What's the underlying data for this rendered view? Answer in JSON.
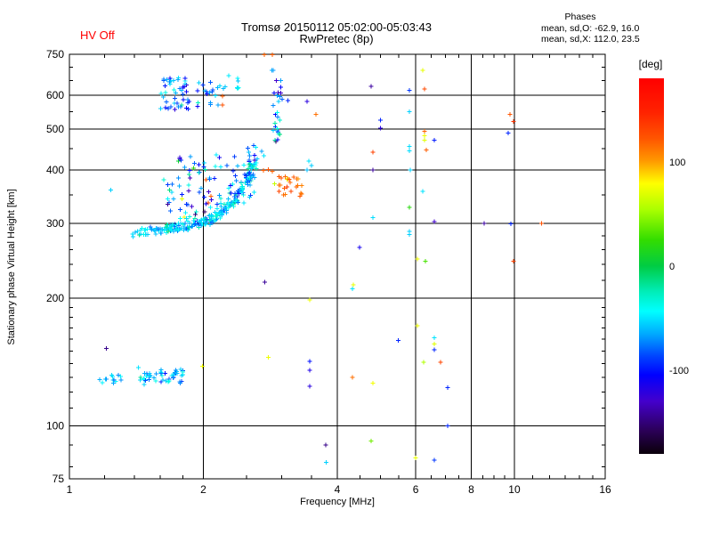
{
  "header": {
    "hv_status": "HV Off",
    "title": "Tromsø 20150112 05:02:00-05:03:43",
    "subtitle": "RwPretec (8p)",
    "phases_label": "Phases",
    "phases_o": "mean, sd,O: -62.9, 16.0",
    "phases_x": "mean, sd,X: 112.0, 23.5"
  },
  "colors": {
    "hv_status": "#ff0000",
    "grid": "#000000",
    "background": "#ffffff"
  },
  "chart_data": {
    "type": "scatter",
    "title": "Tromsø 20150112 05:02:00-05:03:43",
    "subtitle": "RwPretec (8p)",
    "xlabel": "Frequency [MHz]",
    "ylabel": "Stationary phase Virtual Height [km]",
    "x_scale": "log",
    "x_range": [
      1,
      16
    ],
    "y_scale": "log",
    "y_range": [
      75,
      750
    ],
    "x_major_ticks": [
      1,
      2,
      4,
      6,
      8,
      10,
      16
    ],
    "x_gridlines": [
      2,
      4,
      6,
      8,
      10
    ],
    "x_minor_ticks": [
      1.2,
      1.4,
      1.6,
      1.8,
      2.5,
      3,
      3.5,
      4.5,
      5,
      5.5,
      6.5,
      7,
      7.5,
      8.5,
      9,
      9.5,
      11,
      12,
      13,
      14,
      15
    ],
    "y_major_ticks": [
      750,
      600,
      500,
      400,
      300,
      200,
      100,
      75
    ],
    "y_gridlines": [
      600,
      500,
      400,
      300,
      200,
      100
    ],
    "y_minor_ticks": [
      700,
      650,
      550,
      450,
      350,
      280,
      260,
      240,
      220,
      190,
      180,
      170,
      160,
      150,
      140,
      130,
      120,
      110,
      90,
      80
    ],
    "grid": true,
    "colorbar": {
      "label": "[deg]",
      "range": [
        -180,
        180
      ],
      "tick_values": [
        100,
        0,
        -100
      ],
      "tick_labels": [
        "100",
        "0",
        "-100"
      ],
      "stops": [
        [
          0.0,
          "#ff0000"
        ],
        [
          0.09,
          "#ff2200"
        ],
        [
          0.16,
          "#ff5500"
        ],
        [
          0.22,
          "#ff9900"
        ],
        [
          0.28,
          "#ffff00"
        ],
        [
          0.35,
          "#aaff00"
        ],
        [
          0.43,
          "#33dd00"
        ],
        [
          0.5,
          "#00cc44"
        ],
        [
          0.57,
          "#00eebb"
        ],
        [
          0.62,
          "#00ffff"
        ],
        [
          0.68,
          "#00aaff"
        ],
        [
          0.74,
          "#0044ff"
        ],
        [
          0.79,
          "#0000ff"
        ],
        [
          0.86,
          "#4400cc"
        ],
        [
          0.94,
          "#2a0055"
        ],
        [
          1.0,
          "#0a000a"
        ]
      ]
    },
    "seed": 20150112,
    "points": [
      [
        4.77,
        630,
        -140
      ],
      [
        5.81,
        617,
        -90
      ],
      [
        6.22,
        687,
        72
      ],
      [
        6.28,
        622,
        128
      ],
      [
        5.81,
        550,
        -55
      ],
      [
        5.0,
        525,
        -95
      ],
      [
        5.0,
        503,
        -120
      ],
      [
        9.77,
        542,
        122
      ],
      [
        9.95,
        521,
        138
      ],
      [
        6.28,
        494,
        118
      ],
      [
        6.28,
        482,
        74
      ],
      [
        6.28,
        471,
        70
      ],
      [
        6.61,
        471,
        -98
      ],
      [
        9.68,
        489,
        -95
      ],
      [
        6.34,
        446,
        120
      ],
      [
        5.81,
        455,
        -52
      ],
      [
        5.81,
        444,
        -52
      ],
      [
        4.81,
        441,
        132
      ],
      [
        4.81,
        400,
        -142
      ],
      [
        5.83,
        400,
        -55
      ],
      [
        6.22,
        357,
        -50
      ],
      [
        5.81,
        327,
        20
      ],
      [
        4.81,
        309,
        -52
      ],
      [
        8.56,
        300,
        -140
      ],
      [
        9.81,
        299,
        -95
      ],
      [
        11.5,
        300,
        124
      ],
      [
        5.81,
        287,
        -55
      ],
      [
        5.81,
        282,
        -55
      ],
      [
        4.49,
        263,
        -112
      ],
      [
        6.05,
        247,
        74
      ],
      [
        6.31,
        244,
        30
      ],
      [
        9.95,
        244,
        132
      ],
      [
        6.61,
        303,
        -128
      ],
      [
        2.75,
        218,
        -142
      ],
      [
        3.47,
        198,
        74
      ],
      [
        2.8,
        145,
        74
      ],
      [
        1.99,
        138,
        76
      ],
      [
        3.47,
        142,
        -100
      ],
      [
        3.47,
        135,
        -116
      ],
      [
        3.47,
        124,
        -120
      ],
      [
        4.35,
        215,
        72
      ],
      [
        4.33,
        210,
        -50
      ],
      [
        5.48,
        159,
        -95
      ],
      [
        4.33,
        130,
        114
      ],
      [
        4.81,
        126,
        76
      ],
      [
        3.77,
        90,
        -146
      ],
      [
        4.77,
        92,
        40
      ],
      [
        3.78,
        82,
        -55
      ],
      [
        6.0,
        84,
        72
      ],
      [
        6.61,
        83,
        -90
      ],
      [
        7.08,
        123,
        -95
      ],
      [
        7.08,
        100,
        -95
      ],
      [
        6.25,
        141,
        56
      ],
      [
        6.83,
        141,
        130
      ],
      [
        6.61,
        161,
        -50
      ],
      [
        6.61,
        156,
        70
      ],
      [
        6.61,
        151,
        -95
      ],
      [
        6.05,
        172,
        74
      ],
      [
        1.21,
        152,
        -145
      ],
      [
        1.43,
        137,
        -50
      ],
      [
        1.64,
        133,
        -100
      ],
      [
        1.24,
        359,
        -55
      ],
      [
        2.21,
        598,
        120
      ],
      [
        2.21,
        570,
        124
      ],
      [
        3.1,
        584,
        -95
      ],
      [
        3.42,
        581,
        -120
      ],
      [
        3.58,
        542,
        114
      ],
      [
        2.28,
        668,
        -48
      ],
      [
        2.39,
        658,
        -45
      ],
      [
        2.74,
        748,
        118
      ],
      [
        2.86,
        748,
        120
      ],
      [
        2.73,
        399,
        120
      ],
      [
        2.8,
        401,
        122
      ],
      [
        2.86,
        398,
        118
      ],
      [
        2.89,
        372,
        62
      ],
      [
        3.08,
        381,
        72
      ],
      [
        2.05,
        335,
        130
      ],
      [
        2.08,
        347,
        120
      ],
      [
        2.03,
        380,
        125
      ],
      [
        1.79,
        342,
        72
      ],
      [
        1.81,
        310,
        76
      ],
      [
        3.45,
        420,
        -50
      ],
      [
        3.5,
        410,
        -56
      ],
      [
        3.42,
        400,
        -60
      ]
    ],
    "clusters": [
      {
        "name": "o-trace-main",
        "kind": "arc",
        "count": 240,
        "f_jitter": 0.022,
        "h_jitter": 0.022,
        "phase_mean": -55,
        "phase_sd": 18,
        "path": [
          [
            1.4,
            284
          ],
          [
            1.48,
            287
          ],
          [
            1.56,
            289
          ],
          [
            1.64,
            291
          ],
          [
            1.72,
            293
          ],
          [
            1.8,
            295
          ],
          [
            1.88,
            297
          ],
          [
            1.96,
            300
          ],
          [
            2.04,
            304
          ],
          [
            2.12,
            310
          ],
          [
            2.2,
            319
          ],
          [
            2.3,
            332
          ],
          [
            2.4,
            350
          ],
          [
            2.48,
            370
          ],
          [
            2.54,
            390
          ],
          [
            2.6,
            412
          ]
        ]
      },
      {
        "name": "o-trace-spread",
        "kind": "box",
        "f": [
          1.62,
          2.2
        ],
        "h": [
          305,
          435
        ],
        "count": 62,
        "phase_mean": -78,
        "phase_sd": 40
      },
      {
        "name": "steep-section-spread",
        "kind": "box",
        "f": [
          2.25,
          2.62
        ],
        "h": [
          330,
          432
        ],
        "count": 34,
        "phase_mean": -60,
        "phase_sd": 28
      },
      {
        "name": "upper-extension",
        "kind": "box",
        "f": [
          2.5,
          2.8
        ],
        "h": [
          415,
          468
        ],
        "count": 10,
        "phase_mean": -62,
        "phase_sd": 25
      },
      {
        "name": "es-layer-left",
        "kind": "box",
        "f": [
          1.17,
          1.31
        ],
        "h": [
          126,
          133
        ],
        "count": 13,
        "phase_mean": -55,
        "phase_sd": 14
      },
      {
        "name": "es-layer-mid",
        "kind": "box",
        "f": [
          1.44,
          1.62
        ],
        "h": [
          125,
          134
        ],
        "count": 21,
        "phase_mean": -58,
        "phase_sd": 16
      },
      {
        "name": "es-layer-right",
        "kind": "box",
        "f": [
          1.6,
          1.8
        ],
        "h": [
          126,
          137
        ],
        "count": 26,
        "phase_mean": -62,
        "phase_sd": 18
      },
      {
        "name": "high-cluster-1p7",
        "kind": "box",
        "f": [
          1.6,
          1.86
        ],
        "h": [
          555,
          660
        ],
        "count": 44,
        "phase_mean": -80,
        "phase_sd": 30
      },
      {
        "name": "high-cluster-2p0",
        "kind": "box",
        "f": [
          1.94,
          2.16
        ],
        "h": [
          565,
          655
        ],
        "count": 17,
        "phase_mean": -72,
        "phase_sd": 26
      },
      {
        "name": "high-cyan-2p3",
        "kind": "box",
        "f": [
          2.12,
          2.42
        ],
        "h": [
          618,
          676
        ],
        "count": 7,
        "phase_mean": -48,
        "phase_sd": 10
      },
      {
        "name": "streak-3mhz",
        "kind": "box",
        "f": [
          2.84,
          3.01
        ],
        "h": [
          465,
          690
        ],
        "count": 29,
        "phase_mean": -85,
        "phase_sd": 38
      },
      {
        "name": "x-mode-cluster",
        "kind": "box",
        "f": [
          2.95,
          3.35
        ],
        "h": [
          345,
          388
        ],
        "count": 23,
        "phase_mean": 118,
        "phase_sd": 9
      }
    ]
  }
}
